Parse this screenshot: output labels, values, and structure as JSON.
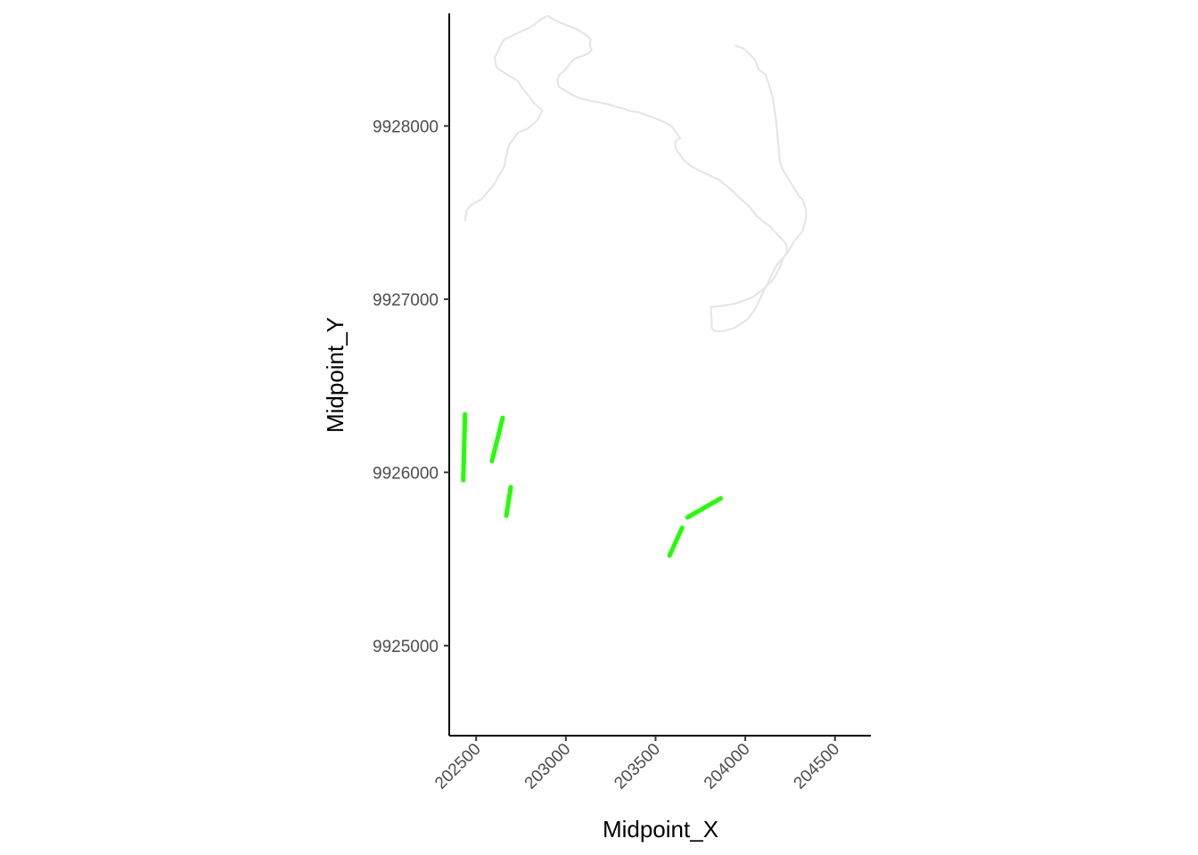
{
  "chart_data": {
    "type": "line",
    "title": "",
    "xlabel": "Midpoint_X",
    "ylabel": "Midpoint_Y",
    "xlim": [
      202350,
      204700
    ],
    "ylim": [
      9924480,
      9928650
    ],
    "x_ticks": [
      202500,
      203000,
      203500,
      204000,
      204500
    ],
    "x_tick_labels": [
      "202500",
      "203000",
      "203500",
      "204000",
      "204500"
    ],
    "y_ticks": [
      9925000,
      9926000,
      9927000,
      9928000
    ],
    "y_tick_labels": [
      "9925000",
      "9926000",
      "9927000",
      "9928000"
    ],
    "grid": false,
    "legend": "none",
    "colors": {
      "path": "#e6e6e6",
      "segments": "#22ff00",
      "axis": "#000000"
    },
    "series": [
      {
        "role": "outline",
        "x": [
          203943,
          203993,
          204053,
          204073,
          204083,
          204113,
          204133,
          204153,
          204173,
          204193,
          204213,
          204243,
          204273,
          204303,
          204323,
          204340,
          204338,
          204318,
          204273,
          204233,
          204173,
          204098,
          204053,
          204013,
          203943,
          203873,
          203828,
          203813,
          203813,
          203808,
          203863,
          203948,
          204038,
          204098,
          204143,
          204163,
          204188,
          204208,
          204228,
          204233,
          204223,
          204173,
          204138,
          204098,
          204063,
          204023,
          203973,
          203918,
          203853,
          203778,
          203728,
          203688,
          203658,
          203638,
          203633,
          203623,
          203613,
          203608,
          203618,
          203638,
          203623,
          203588,
          203553,
          203508,
          203443,
          203403,
          203343,
          203323,
          203283,
          203233,
          203163,
          203078,
          203043,
          202993,
          202958,
          202953,
          202963,
          202998,
          203013,
          203043,
          203128,
          203143,
          203133,
          203138,
          203113,
          203058,
          202948,
          202913,
          202903,
          202898,
          202868,
          202818,
          202783,
          202738,
          202658,
          202643,
          202628,
          202603,
          202613,
          202638,
          202683,
          202733,
          202753,
          202788,
          202823,
          202868,
          202853,
          202838,
          202788,
          202733,
          202683,
          202673,
          202663,
          202658,
          202643,
          202628,
          202598,
          202528,
          202473,
          202458,
          202448,
          202443,
          202438,
          202443
        ],
        "y": [
          9928465,
          9928445,
          9928385,
          9928330,
          9928320,
          9928295,
          9928235,
          9928165,
          9928020,
          9927790,
          9927740,
          9927690,
          9927640,
          9927590,
          9927570,
          9927500,
          9927465,
          9927390,
          9927335,
          9927265,
          9927195,
          9927035,
          9926940,
          9926885,
          9926835,
          9926815,
          9926815,
          9926835,
          9926870,
          9926955,
          9926960,
          9926975,
          9927010,
          9927055,
          9927100,
          9927125,
          9927175,
          9927230,
          9927265,
          9927300,
          9927325,
          9927380,
          9927420,
          9927450,
          9927480,
          9927535,
          9927580,
          9927635,
          9927690,
          9927725,
          9927750,
          9927775,
          9927800,
          9927830,
          9927840,
          9927850,
          9927870,
          9927905,
          9927920,
          9927930,
          9927950,
          9928000,
          9928020,
          9928040,
          9928065,
          9928080,
          9928090,
          9928100,
          9928110,
          9928125,
          9928140,
          9928160,
          9928175,
          9928205,
          9928230,
          9928265,
          9928295,
          9928325,
          9928345,
          9928385,
          9928420,
          9928440,
          9928465,
          9928500,
          9928525,
          9928560,
          9928605,
          9928625,
          9928635,
          9928635,
          9928620,
          9928580,
          9928560,
          9928540,
          9928500,
          9928480,
          9928445,
          9928395,
          9928340,
          9928320,
          9928290,
          9928260,
          9928225,
          9928180,
          9928130,
          9928090,
          9928055,
          9928030,
          9927985,
          9927960,
          9927890,
          9927850,
          9927805,
          9927770,
          9927740,
          9927715,
          9927660,
          9927575,
          9927545,
          9927525,
          9927515,
          9927485,
          9927460,
          9927450
        ]
      },
      {
        "role": "highlight",
        "segments": [
          {
            "x": [
              202428,
              202438
            ],
            "y": [
              9925955,
              9926335
            ]
          },
          {
            "x": [
              202588,
              202648
            ],
            "y": [
              9926065,
              9926315
            ]
          },
          {
            "x": [
              202668,
              202693
            ],
            "y": [
              9925750,
              9925915
            ]
          },
          {
            "x": [
              203578,
              203648
            ],
            "y": [
              9925520,
              9925680
            ]
          },
          {
            "x": [
              203678,
              203863
            ],
            "y": [
              9925740,
              9925850
            ]
          }
        ]
      }
    ]
  }
}
